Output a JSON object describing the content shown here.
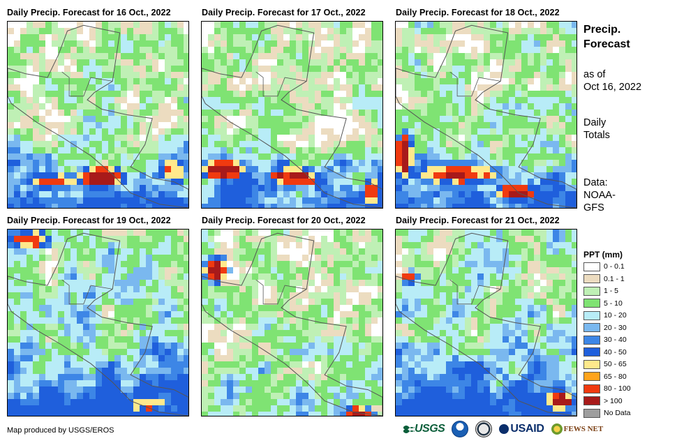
{
  "panels": [
    {
      "title": "Daily Precip. Forecast for 16 Oct., 2022",
      "day": 0
    },
    {
      "title": "Daily Precip. Forecast for 17 Oct., 2022",
      "day": 1
    },
    {
      "title": "Daily Precip. Forecast for 18 Oct., 2022",
      "day": 2
    },
    {
      "title": "Daily Precip. Forecast for 19 Oct., 2022",
      "day": 3
    },
    {
      "title": "Daily Precip. Forecast for 20 Oct., 2022",
      "day": 4
    },
    {
      "title": "Daily Precip. Forecast for 21 Oct., 2022",
      "day": 5
    }
  ],
  "sidebar": {
    "title_line1": "Precip.",
    "title_line2": "Forecast",
    "asof_line1": "as of",
    "asof_line2": "Oct 16, 2022",
    "totals_line1": "Daily",
    "totals_line2": "Totals",
    "data_line1": "Data:",
    "data_line2": "NOAA-",
    "data_line3": "GFS"
  },
  "legend": {
    "title": "PPT (mm)",
    "items": [
      {
        "label": "0 - 0.1",
        "color": "#ffffff"
      },
      {
        "label": "0.1 - 1",
        "color": "#ecdcc0"
      },
      {
        "label": "1 - 5",
        "color": "#bff0b5"
      },
      {
        "label": "5 - 10",
        "color": "#7fe373"
      },
      {
        "label": "10 - 20",
        "color": "#b8ecf7"
      },
      {
        "label": "20 - 30",
        "color": "#7ab8ef"
      },
      {
        "label": "30 - 40",
        "color": "#3d86e6"
      },
      {
        "label": "40 - 50",
        "color": "#1f5fdc"
      },
      {
        "label": "50 - 65",
        "color": "#ffe98c"
      },
      {
        "label": "65 - 80",
        "color": "#ffa41c"
      },
      {
        "label": "80 - 100",
        "color": "#f03a10"
      },
      {
        "label": "> 100",
        "color": "#a81a1a"
      },
      {
        "label": "No Data",
        "color": "#9e9e9e"
      }
    ]
  },
  "footer": {
    "credit": "Map produced by USGS/EROS",
    "logo_usgs": "USGS",
    "logo_usaid": "USAID",
    "logo_fews": "FEWS NET"
  },
  "icons": {
    "usgs": "usgs-logo-icon",
    "noaa": "noaa-logo-icon",
    "doi": "interior-seal-icon",
    "usaid": "usaid-logo-icon",
    "fews": "fews-net-logo-icon"
  }
}
